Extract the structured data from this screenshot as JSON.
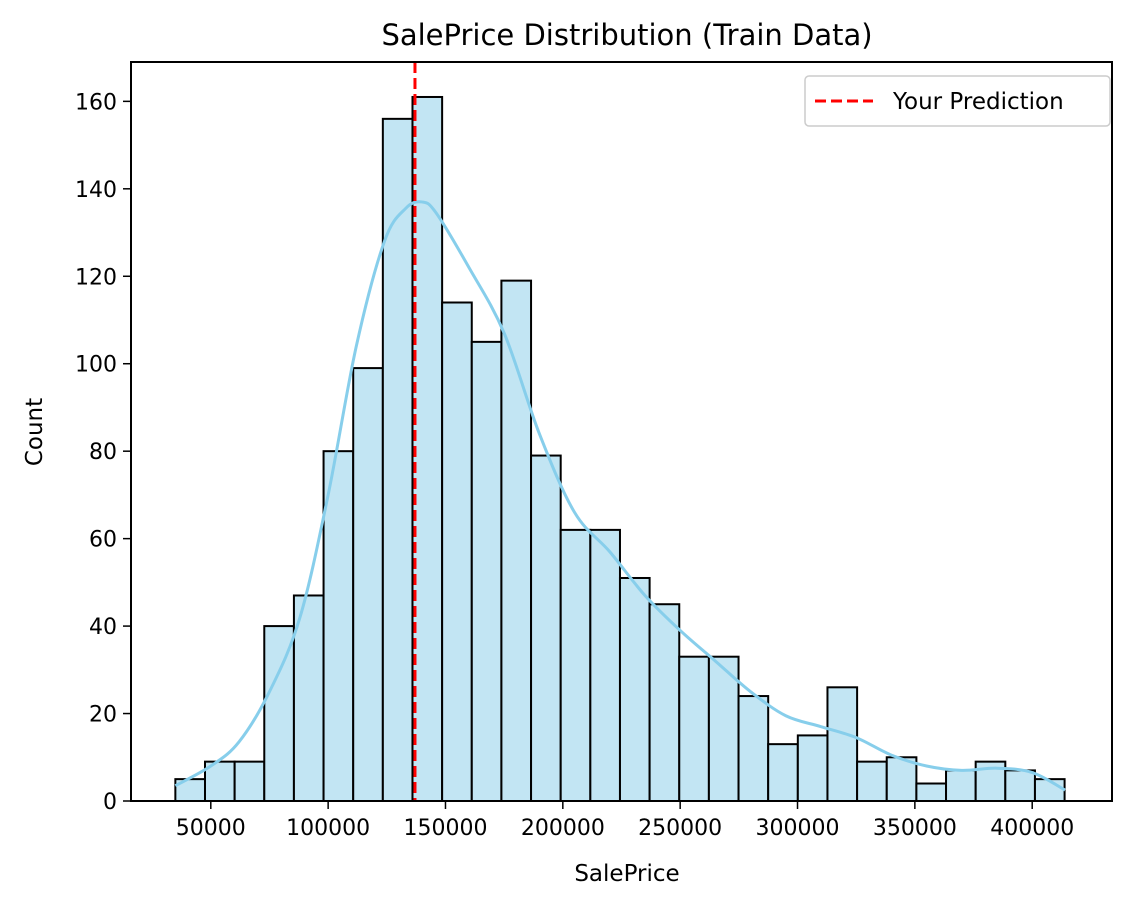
{
  "chart_data": {
    "type": "bar",
    "title": "SalePrice Distribution (Train Data)",
    "xlabel": "SalePrice",
    "ylabel": "Count",
    "xlim": [
      16000,
      434000
    ],
    "ylim": [
      0,
      169
    ],
    "xticks": [
      50000,
      100000,
      150000,
      200000,
      250000,
      300000,
      350000,
      400000
    ],
    "yticks": [
      0,
      20,
      40,
      60,
      80,
      100,
      120,
      140,
      160
    ],
    "bins": {
      "start": 34900,
      "width": 12630,
      "counts": [
        5,
        9,
        9,
        40,
        47,
        80,
        99,
        156,
        161,
        114,
        105,
        119,
        79,
        62,
        62,
        51,
        45,
        33,
        33,
        24,
        13,
        15,
        26,
        9,
        10,
        4,
        7,
        9,
        7,
        5
      ]
    },
    "kde": {
      "x": [
        34900,
        50000,
        62000,
        75000,
        88000,
        100000,
        112000,
        124000,
        133000,
        140000,
        146000,
        160000,
        175000,
        190000,
        205000,
        220000,
        235000,
        250000,
        265000,
        280000,
        295000,
        310000,
        325000,
        340000,
        355000,
        370000,
        385000,
        400000,
        414000
      ],
      "y": [
        3.5,
        8,
        13.5,
        25,
        42,
        70,
        104,
        128,
        135.5,
        137,
        134.5,
        122,
        107,
        84,
        66,
        57,
        47,
        39,
        32,
        25,
        19.5,
        17,
        14.5,
        10.5,
        8,
        7,
        7.5,
        6.5,
        2.5
      ]
    },
    "prediction": {
      "name": "Your Prediction",
      "value": 137000,
      "color": "#ff0000"
    },
    "bar_fill": "#c2e5f3",
    "kde_color": "#87ceeb",
    "legend": "top-right",
    "grid": false
  }
}
